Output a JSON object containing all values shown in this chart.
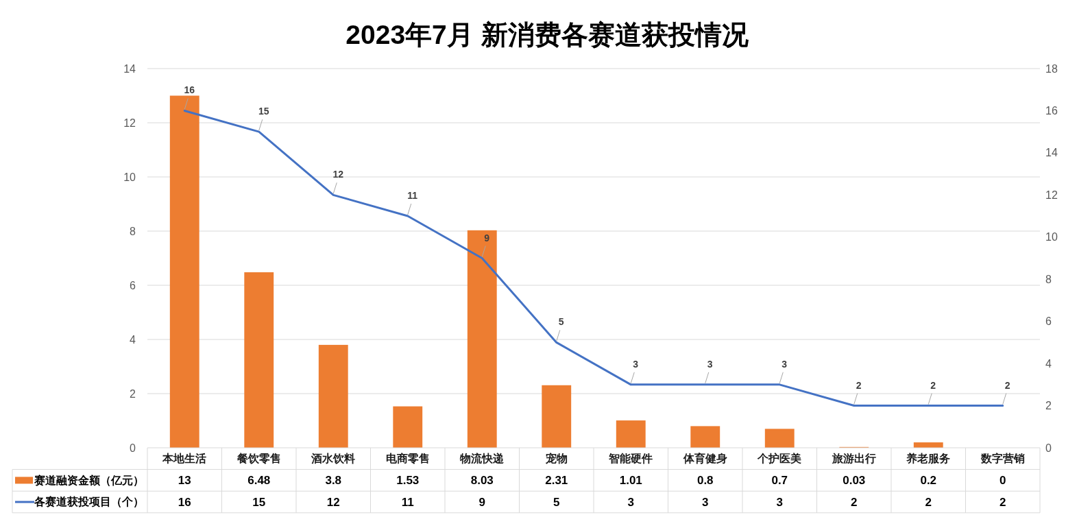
{
  "chart_data": {
    "type": "bar",
    "title": "2023年7月 新消费各赛道获投情况",
    "categories": [
      "本地生活",
      "餐饮零售",
      "酒水饮料",
      "电商零售",
      "物流快递",
      "宠物",
      "智能硬件",
      "体育健身",
      "个护医美",
      "旅游出行",
      "养老服务",
      "数字营销"
    ],
    "series": [
      {
        "name": "赛道融资金额（亿元）",
        "color": "#ed7d31",
        "values": [
          13,
          6.48,
          3.8,
          1.53,
          8.03,
          2.31,
          1.01,
          0.8,
          0.7,
          0.03,
          0.2,
          0
        ]
      },
      {
        "name": "各赛道获投项目（个）",
        "type": "line",
        "color": "#4472c4",
        "axis": "y2",
        "values": [
          16,
          15,
          12,
          11,
          9,
          5,
          3,
          3,
          3,
          2,
          2,
          2
        ]
      }
    ],
    "ylim": [
      0,
      14
    ],
    "yticks": [
      0,
      2,
      4,
      6,
      8,
      10,
      12,
      14
    ],
    "y2lim": [
      0,
      18
    ],
    "y2ticks": [
      0,
      2,
      4,
      6,
      8,
      10,
      12,
      14,
      16,
      18
    ],
    "annotations": [
      "16",
      "15",
      "12",
      "11",
      "9",
      "5",
      "3",
      "3",
      "3",
      "2",
      "2",
      "2"
    ],
    "grid": "y",
    "legend": "bottom",
    "data_labels": true
  }
}
